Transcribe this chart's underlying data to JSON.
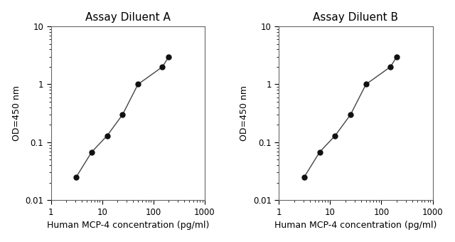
{
  "title_A": "Assay Diluent A",
  "title_B": "Assay Diluent B",
  "xlabel": "Human MCP-4 concentration (pg/ml)",
  "ylabel": "OD=450 nm",
  "xlim": [
    1,
    1000
  ],
  "ylim": [
    0.01,
    10
  ],
  "x_A": [
    3.1,
    6.25,
    12.5,
    25,
    50,
    150,
    200
  ],
  "y_A": [
    0.025,
    0.068,
    0.13,
    0.3,
    1.0,
    2.0,
    3.0
  ],
  "x_B": [
    3.1,
    6.25,
    12.5,
    25,
    50,
    150,
    200
  ],
  "y_B": [
    0.025,
    0.068,
    0.13,
    0.3,
    1.0,
    2.0,
    3.0
  ],
  "line_color": "#444444",
  "marker_color": "#111111",
  "bg_color": "#ffffff",
  "title_fontsize": 11,
  "label_fontsize": 9,
  "tick_fontsize": 8.5,
  "marker_size": 5,
  "line_width": 1.0,
  "ytick_labels": [
    "0.01",
    "0.1",
    "1",
    "10"
  ],
  "ytick_vals": [
    0.01,
    0.1,
    1,
    10
  ],
  "xtick_labels": [
    "1",
    "10",
    "100",
    "1000"
  ],
  "xtick_vals": [
    1,
    10,
    100,
    1000
  ]
}
